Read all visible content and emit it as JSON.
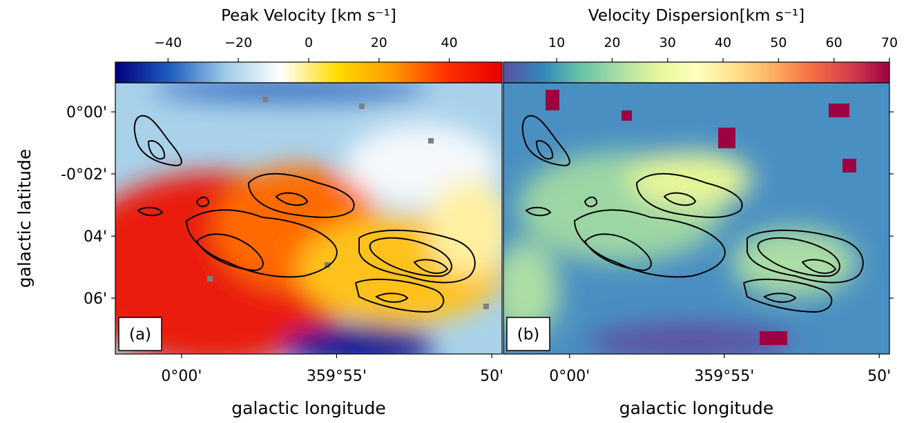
{
  "chart_data": [
    {
      "type": "heatmap",
      "colorbar_label": "Peak Velocity [km s⁻¹]",
      "colorbar_lim": [
        -55,
        55
      ],
      "colorbar_ticks": [
        {
          "value": -40,
          "label": "−40"
        },
        {
          "value": -20,
          "label": "−20"
        },
        0,
        20,
        40
      ],
      "colormap": [
        "#00007f",
        "#1f5fbf",
        "#9fcbe6",
        "#ffffff",
        "#ffdc00",
        "#ff9a00",
        "#ff3000",
        "#e80000"
      ],
      "xlabel": "galactic longitude",
      "ylabel": "galactic latitude",
      "xlim": [
        0.0356,
        -0.1722
      ],
      "xticks": [
        {
          "value": 0,
          "label": "0°00'"
        },
        {
          "value": -0.0833,
          "label": "359°55'"
        },
        {
          "value": -0.1667,
          "label": "50'"
        }
      ],
      "ylim": [
        -0.13,
        0.0156
      ],
      "yticks": [
        {
          "value": 0,
          "label": "0°00'"
        },
        {
          "value": -0.0333,
          "label": "-0°02'"
        },
        {
          "value": -0.0667,
          "label": "04'"
        },
        {
          "value": -0.1,
          "label": "06'"
        }
      ],
      "panel_label": "(a)"
    },
    {
      "type": "heatmap",
      "colorbar_label": "Velocity Dispersion[km s⁻¹]",
      "colorbar_lim": [
        0.4,
        70
      ],
      "colorbar_ticks": [
        10,
        20,
        30,
        40,
        50,
        60,
        70
      ],
      "colormap": [
        "#5e4fa2",
        "#3288bd",
        "#66c2a5",
        "#abdda4",
        "#e6f598",
        "#ffffbf",
        "#fee08b",
        "#fdae61",
        "#f46d43",
        "#d53e4f",
        "#9e0142"
      ],
      "xlabel": "galactic longitude",
      "xlim": [
        0.0356,
        -0.1722
      ],
      "xticks": [
        {
          "value": 0,
          "label": "0°00'"
        },
        {
          "value": -0.0833,
          "label": "359°55'"
        },
        {
          "value": -0.1667,
          "label": "50'"
        }
      ],
      "ylim": [
        -0.13,
        0.0156
      ],
      "panel_label": "(b)"
    }
  ]
}
